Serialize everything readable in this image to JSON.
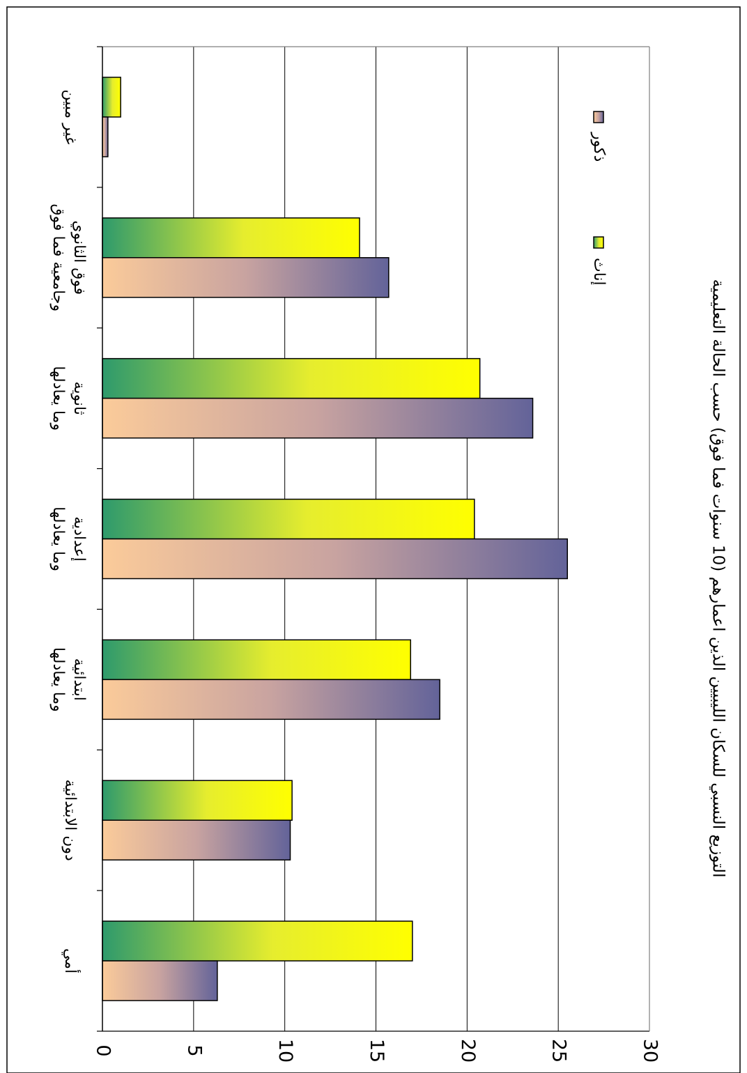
{
  "chart_data": {
    "type": "bar",
    "orientation": "horizontal",
    "title": "التوزيع النسبي للسكان الليبيين الذين اعمارهم (10 سنوات فما فوق) حسب الحالة التعليمية",
    "categories": [
      [
        "غير مبين"
      ],
      [
        "فوق الثانوي",
        "وجامعية فما فوق"
      ],
      [
        "ثانوية",
        "وما يعادلها"
      ],
      [
        "إعدادية",
        "وما يعادلها"
      ],
      [
        "ابتدائية",
        "وما يعادلها"
      ],
      [
        "دون الابتدائية"
      ],
      [
        "أمي"
      ]
    ],
    "series": [
      {
        "name": "إناث",
        "values": [
          1.0,
          14.1,
          20.7,
          20.4,
          16.9,
          10.4,
          17.0
        ],
        "colors": [
          "#2e9a6c",
          "#ffff00"
        ]
      },
      {
        "name": "ذكور",
        "values": [
          0.3,
          15.7,
          23.6,
          25.5,
          18.5,
          10.3,
          6.3
        ],
        "colors": [
          "#fbcb9a",
          "#636399"
        ]
      }
    ],
    "xlim": [
      0,
      30
    ],
    "ticks": [
      "0",
      "5",
      "10",
      "15",
      "20",
      "25",
      "30"
    ],
    "grid": true,
    "legend_position": "top-right"
  }
}
